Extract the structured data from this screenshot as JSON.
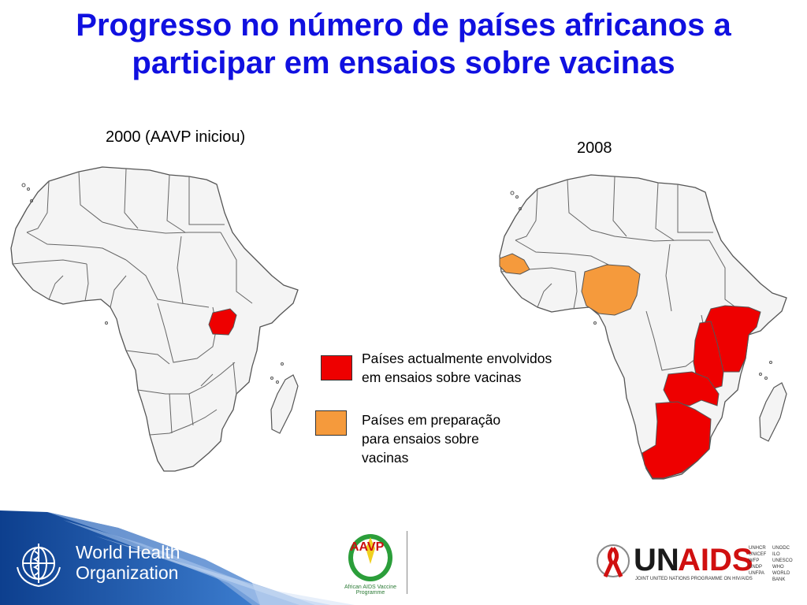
{
  "title_line1": "Progresso no número de países africanos a",
  "title_line2": "participar em ensaios sobre vacinas",
  "maps": {
    "left_label": "2000 (AAVP iniciou)",
    "right_label": "2008"
  },
  "legend": {
    "items": [
      {
        "text": "Países actualmente envolvidos\nem ensaios sobre vacinas",
        "color": "#ee0000"
      },
      {
        "text": "Países em preparação\npara ensaios sobre\nvacinas",
        "color": "#f59a3c"
      }
    ]
  },
  "logos": {
    "who_line1": "World Health",
    "who_line2": "Organization",
    "aavp_text": "AAVP",
    "aavp_caption": "African AIDS Vaccine Programme",
    "unaids_un": "UN",
    "unaids_aids": "AIDS",
    "unaids_tagline": "JOINT UNITED NATIONS PROGRAMME ON HIV/AIDS",
    "unaids_col1": [
      "UNHCR",
      "UNICEF",
      "WFP",
      "UNDP",
      "UNFPA"
    ],
    "unaids_col2": [
      "UNODC",
      "ILO",
      "UNESCO",
      "WHO",
      "WORLD BANK"
    ]
  },
  "colors": {
    "title": "#1010e0",
    "participating": "#ee0000",
    "preparing": "#f59a3c",
    "country_fill": "#f4f4f4",
    "border": "#555555"
  }
}
